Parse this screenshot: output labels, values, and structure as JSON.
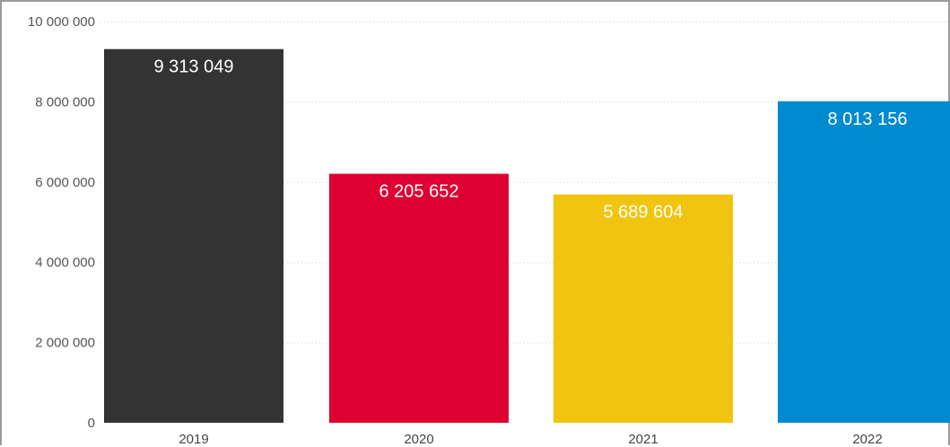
{
  "chart_data": {
    "type": "bar",
    "categories": [
      "2019",
      "2020",
      "2021",
      "2022"
    ],
    "values": [
      9313049,
      6205652,
      5689604,
      8013156
    ],
    "data_labels": [
      "9 313 049",
      "6 205 652",
      "5 689 604",
      "8 013 156"
    ],
    "bar_colors": [
      "#333333",
      "#DD0031",
      "#F1C40F",
      "#008ACE"
    ],
    "ylim": [
      0,
      10000000
    ],
    "yticks": [
      0,
      2000000,
      4000000,
      6000000,
      8000000,
      10000000
    ],
    "ytick_labels": [
      "0",
      "2 000 000",
      "4 000 000",
      "6 000 000",
      "8 000 000",
      "10 000 000"
    ],
    "grid": true,
    "legend": "none"
  }
}
